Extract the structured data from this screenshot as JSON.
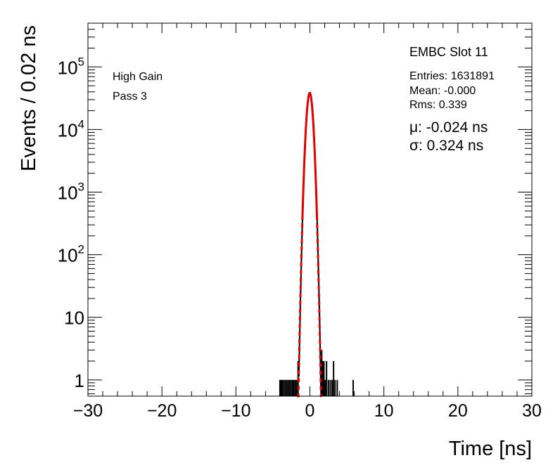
{
  "chart_data": {
    "type": "histogram",
    "title": "",
    "xlabel": "Time [ns]",
    "ylabel": "Events / 0.02 ns",
    "xlim": [
      -30,
      30
    ],
    "ylim": [
      0.55,
      500000
    ],
    "yscale": "log",
    "x_ticks": [
      -30,
      -20,
      -10,
      0,
      10,
      20,
      30
    ],
    "x_tick_labels": [
      "−30",
      "−20",
      "−10",
      "0",
      "10",
      "20",
      "30"
    ],
    "y_ticks": [
      {
        "value": 1,
        "base": "1",
        "exp": ""
      },
      {
        "value": 10,
        "base": "10",
        "exp": ""
      },
      {
        "value": 100,
        "base": "10",
        "exp": "2"
      },
      {
        "value": 1000,
        "base": "10",
        "exp": "3"
      },
      {
        "value": 10000,
        "base": "10",
        "exp": "4"
      },
      {
        "value": 100000,
        "base": "10",
        "exp": "5"
      }
    ],
    "grid": false,
    "legend": "none",
    "annotations": {
      "left_line1": "High Gain",
      "left_line2": "Pass 3",
      "slot": "EMBC Slot 11",
      "entries": "Entries: 1631891",
      "mean": "Mean: -0.000",
      "rms": "Rms: 0.339",
      "mu": "μ: -0.024 ns",
      "sigma": "σ: 0.324 ns"
    },
    "series": [
      {
        "kind": "histogram",
        "color": "#000000",
        "core": {
          "peak": 38000,
          "mean": -0.024,
          "sigma": 0.324,
          "x_range": [
            -1.5,
            1.5
          ]
        },
        "sparse_bins": [
          {
            "x": -4.05,
            "y": 1
          },
          {
            "x": -3.9,
            "y": 1
          },
          {
            "x": -3.75,
            "y": 1
          },
          {
            "x": -3.55,
            "y": 1
          },
          {
            "x": -3.35,
            "y": 1
          },
          {
            "x": -3.15,
            "y": 1
          },
          {
            "x": -2.95,
            "y": 1
          },
          {
            "x": -2.75,
            "y": 1
          },
          {
            "x": -2.55,
            "y": 1
          },
          {
            "x": -2.35,
            "y": 1
          },
          {
            "x": -2.2,
            "y": 1
          },
          {
            "x": -2.0,
            "y": 1
          },
          {
            "x": -1.8,
            "y": 1
          },
          {
            "x": -1.6,
            "y": 2
          },
          {
            "x": 1.6,
            "y": 3
          },
          {
            "x": 1.75,
            "y": 2
          },
          {
            "x": 1.9,
            "y": 2
          },
          {
            "x": 2.05,
            "y": 1
          },
          {
            "x": 2.25,
            "y": 2
          },
          {
            "x": 2.5,
            "y": 1
          },
          {
            "x": 2.75,
            "y": 1
          },
          {
            "x": 3.0,
            "y": 1
          },
          {
            "x": 3.2,
            "y": 2
          },
          {
            "x": 3.4,
            "y": 1
          },
          {
            "x": 3.7,
            "y": 1
          },
          {
            "x": 5.85,
            "y": 1
          }
        ]
      },
      {
        "kind": "gaussian-fit",
        "color": "#e00000",
        "peak": 38000,
        "mean": -0.024,
        "sigma": 0.324,
        "solid_range": [
          -1.0,
          0.95
        ],
        "dashed_range": [
          -1.75,
          1.55
        ]
      }
    ]
  }
}
